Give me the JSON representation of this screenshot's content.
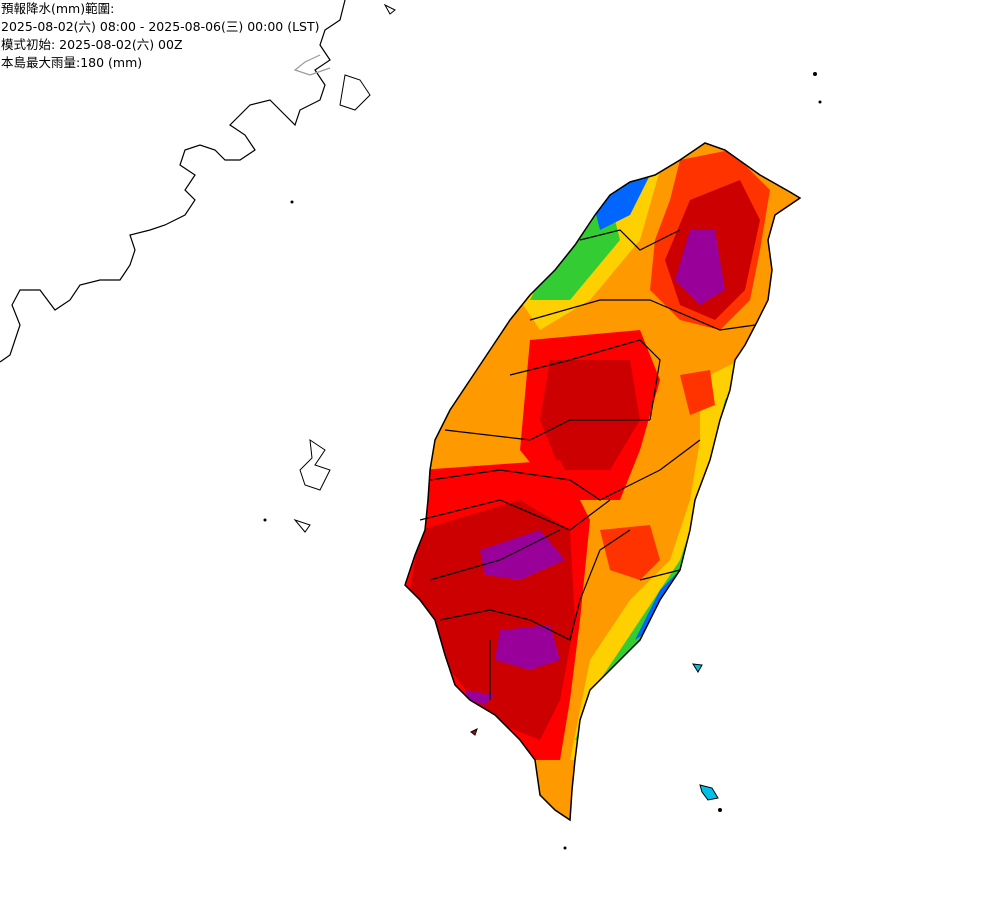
{
  "header": {
    "lines": [
      "預報降水(mm)範圍:",
      "2025-08-02(六) 08:00 - 2025-08-06(三) 00:00 (LST)",
      "模式初始: 2025-08-02(六) 00Z",
      "本島最大雨量:180 (mm)"
    ]
  }
}
